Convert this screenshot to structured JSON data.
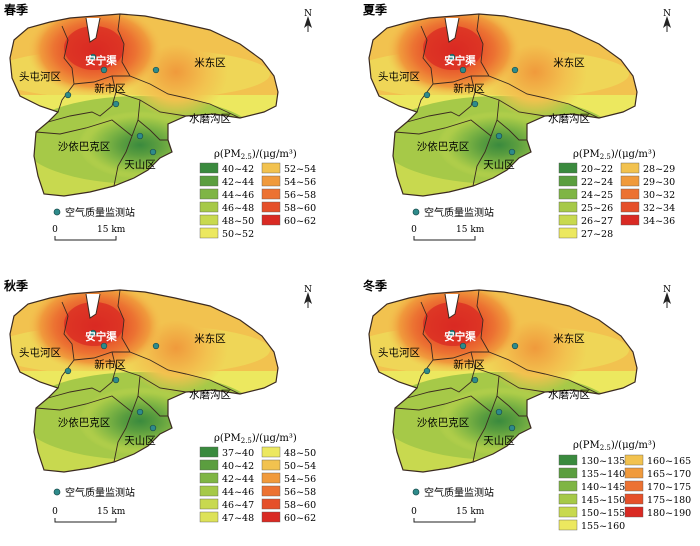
{
  "panels": [
    {
      "season": "春季",
      "legend_title_prefix": "ρ(PM",
      "legend_title_sub": "2.5",
      "legend_title_suffix": ")/(μg/m³)",
      "legend_left": [
        {
          "label": "40~42",
          "color": "#3a8a3e"
        },
        {
          "label": "42~44",
          "color": "#5b9e3f"
        },
        {
          "label": "44~46",
          "color": "#7fb544"
        },
        {
          "label": "46~48",
          "color": "#a6c948"
        },
        {
          "label": "48~50",
          "color": "#c8d94f"
        },
        {
          "label": "50~52",
          "color": "#ece85f"
        }
      ],
      "legend_right": [
        {
          "label": "52~54",
          "color": "#f2c24f"
        },
        {
          "label": "54~56",
          "color": "#f09a3c"
        },
        {
          "label": "56~58",
          "color": "#ec7232"
        },
        {
          "label": "58~60",
          "color": "#e5502a"
        },
        {
          "label": "60~62",
          "color": "#d92a23"
        }
      ]
    },
    {
      "season": "夏季",
      "legend_title_prefix": "ρ(PM",
      "legend_title_sub": "2.5",
      "legend_title_suffix": ")/(μg/m³)",
      "legend_left": [
        {
          "label": "20~22",
          "color": "#3a8a3e"
        },
        {
          "label": "22~24",
          "color": "#5b9e3f"
        },
        {
          "label": "24~25",
          "color": "#7fb544"
        },
        {
          "label": "25~26",
          "color": "#a6c948"
        },
        {
          "label": "26~27",
          "color": "#c8d94f"
        },
        {
          "label": "27~28",
          "color": "#ece85f"
        }
      ],
      "legend_right": [
        {
          "label": "28~29",
          "color": "#f2c24f"
        },
        {
          "label": "29~30",
          "color": "#f09a3c"
        },
        {
          "label": "30~32",
          "color": "#ec7232"
        },
        {
          "label": "32~34",
          "color": "#e5502a"
        },
        {
          "label": "34~36",
          "color": "#d92a23"
        }
      ]
    },
    {
      "season": "秋季",
      "legend_title_prefix": "ρ(PM",
      "legend_title_sub": "2.5",
      "legend_title_suffix": ")/(μg/m³)",
      "legend_left": [
        {
          "label": "37~40",
          "color": "#3a8a3e"
        },
        {
          "label": "40~42",
          "color": "#5b9e3f"
        },
        {
          "label": "42~44",
          "color": "#7fb544"
        },
        {
          "label": "44~46",
          "color": "#a6c948"
        },
        {
          "label": "46~47",
          "color": "#c8d94f"
        },
        {
          "label": "47~48",
          "color": "#dde258"
        }
      ],
      "legend_right": [
        {
          "label": "48~50",
          "color": "#ece85f"
        },
        {
          "label": "50~54",
          "color": "#f2c24f"
        },
        {
          "label": "54~56",
          "color": "#f09a3c"
        },
        {
          "label": "56~58",
          "color": "#ec7232"
        },
        {
          "label": "58~60",
          "color": "#e5502a"
        },
        {
          "label": "60~62",
          "color": "#d92a23"
        }
      ]
    },
    {
      "season": "冬季",
      "legend_title_prefix": "ρ(PM",
      "legend_title_sub": "2.5",
      "legend_title_suffix": ")/(μg/m³)",
      "legend_left": [
        {
          "label": "130~135",
          "color": "#3a8a3e"
        },
        {
          "label": "135~140",
          "color": "#5b9e3f"
        },
        {
          "label": "140~145",
          "color": "#7fb544"
        },
        {
          "label": "145~150",
          "color": "#a6c948"
        },
        {
          "label": "150~155",
          "color": "#c8d94f"
        },
        {
          "label": "155~160",
          "color": "#ece85f"
        }
      ],
      "legend_right": [
        {
          "label": "160~165",
          "color": "#f2c24f"
        },
        {
          "label": "165~170",
          "color": "#f09a3c"
        },
        {
          "label": "170~175",
          "color": "#ec7232"
        },
        {
          "label": "175~180",
          "color": "#e5502a"
        },
        {
          "label": "180~190",
          "color": "#d92a23"
        }
      ]
    }
  ],
  "districts": {
    "anningqu": "安宁渠",
    "midong": "米东区",
    "toutunhe": "头屯河区",
    "xinshi": "新市区",
    "shuimogou": "水磨沟区",
    "shayibake": "沙依巴克区",
    "tianshan": "天山区"
  },
  "station_label": "空气质量监测站",
  "scale": {
    "zero": "0",
    "distance": "15 km"
  },
  "north_label": "N",
  "colors": {
    "boundary": "#3b2a20",
    "station_fill": "#2e8b8b",
    "station_stroke": "#1a4e4e"
  }
}
